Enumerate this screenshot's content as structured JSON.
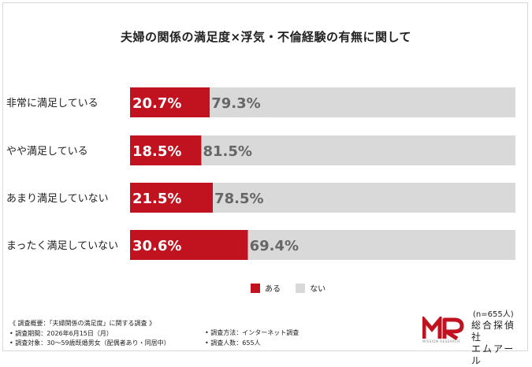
{
  "title": "夫婦の関係の満足度×浮気・不倫経験の有無に関して",
  "colors": {
    "series_a": "#c0121f",
    "series_b": "#d9d9d9",
    "text_b": "#666666"
  },
  "chart_data": {
    "type": "bar",
    "orientation": "horizontal",
    "stacked": "100%",
    "categories": [
      "非常に満足している",
      "やや満足している",
      "あまり満足していない",
      "まったく満足していない"
    ],
    "series": [
      {
        "name": "ある",
        "values": [
          20.7,
          18.5,
          21.5,
          30.6
        ],
        "labels": [
          "20.7%",
          "18.5%",
          "21.5%",
          "30.6%"
        ]
      },
      {
        "name": "ない",
        "values": [
          79.3,
          81.5,
          78.5,
          69.4
        ],
        "labels": [
          "79.3%",
          "81.5%",
          "78.5%",
          "69.4%"
        ]
      }
    ],
    "xlim": [
      0,
      100
    ],
    "legend_position": "bottom-center",
    "grid": false
  },
  "legend": {
    "a": "ある",
    "b": "ない"
  },
  "sample_size": "(n=655人)",
  "notes": {
    "heading": "《 調査概要：「夫婦関係の満足度」に関する調査 》",
    "period": "• 調査期間：2026年6月15日（月）",
    "target": "• 調査対象：30〜59歳既婚男女（配偶者あり・同居中）",
    "method": "• 調査方法：インターネット調査",
    "count": "• 調査人数：655人"
  },
  "brand": {
    "name_line1": "総合探偵社",
    "name_line2": "エムアール",
    "logo_text": "MR",
    "sub": "MISSION RESEARCH"
  }
}
